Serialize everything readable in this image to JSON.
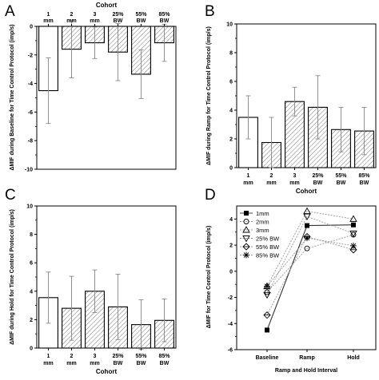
{
  "figure": {
    "panel_letters": [
      "A",
      "B",
      "C",
      "D"
    ],
    "colors": {
      "bar_edge": "#000000",
      "hatch": "#555555",
      "error_bar": "#888888",
      "line": "#999999",
      "marker": "#000000"
    }
  },
  "chart_data": [
    {
      "panel": "A",
      "type": "bar",
      "title": "Cohort",
      "xlabel": "",
      "ylabel": "ΔMIF during Baseline for Time Control Protocol (imp/s)",
      "categories": [
        [
          "1",
          "mm"
        ],
        [
          "2",
          "mm"
        ],
        [
          "3",
          "mm"
        ],
        [
          "25%",
          "BW"
        ],
        [
          "55%",
          "BW"
        ],
        [
          "85%",
          "BW"
        ]
      ],
      "hatched": [
        false,
        true,
        true,
        true,
        true,
        true
      ],
      "values": [
        -4.5,
        -1.6,
        -1.15,
        -1.8,
        -3.35,
        -1.15
      ],
      "errors": [
        2.3,
        2.0,
        1.1,
        2.0,
        1.7,
        1.3
      ],
      "ylim": [
        -10,
        0
      ],
      "yticks": [
        0,
        -2,
        -4,
        -6,
        -8,
        -10
      ],
      "xaxis_position": "top",
      "grid": false
    },
    {
      "panel": "B",
      "type": "bar",
      "title": "",
      "xlabel": "Cohort",
      "ylabel": "ΔMIF during Ramp for Time Control Protocol (imp/s)",
      "categories": [
        [
          "1",
          "mm"
        ],
        [
          "2",
          "mm"
        ],
        [
          "3",
          "mm"
        ],
        [
          "25%",
          "BW"
        ],
        [
          "55%",
          "BW"
        ],
        [
          "85%",
          "BW"
        ]
      ],
      "hatched": [
        false,
        true,
        true,
        true,
        true,
        true
      ],
      "values": [
        3.5,
        1.75,
        4.6,
        4.2,
        2.65,
        2.55
      ],
      "errors": [
        1.5,
        1.75,
        1.0,
        2.2,
        1.55,
        1.65
      ],
      "ylim": [
        0,
        10
      ],
      "yticks": [
        0,
        2,
        4,
        6,
        8,
        10
      ],
      "xaxis_position": "bottom",
      "grid": false
    },
    {
      "panel": "C",
      "type": "bar",
      "title": "",
      "xlabel": "Cohort",
      "ylabel": "ΔMIF during Hold for Time Control Protocol (imp/s)",
      "categories": [
        [
          "1",
          "mm"
        ],
        [
          "2",
          "mm"
        ],
        [
          "3",
          "mm"
        ],
        [
          "25%",
          "BW"
        ],
        [
          "55%",
          "BW"
        ],
        [
          "85%",
          "BW"
        ]
      ],
      "hatched": [
        false,
        true,
        true,
        true,
        true,
        true
      ],
      "values": [
        3.55,
        2.8,
        4.0,
        2.9,
        1.65,
        1.95
      ],
      "errors": [
        1.8,
        2.25,
        1.5,
        2.3,
        1.75,
        1.5
      ],
      "ylim": [
        0,
        10
      ],
      "yticks": [
        0,
        2,
        4,
        6,
        8,
        10
      ],
      "xaxis_position": "bottom",
      "grid": false
    },
    {
      "panel": "D",
      "type": "line",
      "title": "",
      "xlabel": "Ramp and Hold Interval",
      "ylabel": "ΔMIF for Time Control Protocol (imp/s)",
      "categories": [
        "Baseline",
        "Ramp",
        "Hold"
      ],
      "ylim": [
        -6,
        5
      ],
      "yticks": [
        -6,
        -4,
        -2,
        0,
        2,
        4
      ],
      "legend_position": "top-left",
      "series": [
        {
          "name": "1mm",
          "marker": "square-filled",
          "values": [
            -4.5,
            3.5,
            3.55
          ]
        },
        {
          "name": "2mm",
          "marker": "circle",
          "values": [
            -1.6,
            1.75,
            2.8
          ]
        },
        {
          "name": "3mm",
          "marker": "triangle-up",
          "values": [
            -1.15,
            4.6,
            4.0
          ]
        },
        {
          "name": "25% BW",
          "marker": "triangle-down",
          "values": [
            -1.8,
            4.2,
            2.9
          ]
        },
        {
          "name": "55% BW",
          "marker": "diamond-cross",
          "values": [
            -3.35,
            2.65,
            1.65
          ]
        },
        {
          "name": "85% BW",
          "marker": "star-x",
          "values": [
            -1.15,
            2.55,
            1.95
          ]
        }
      ]
    }
  ]
}
